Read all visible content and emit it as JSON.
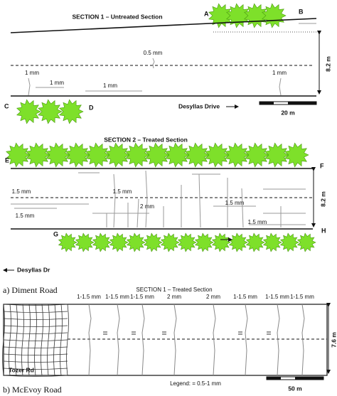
{
  "panel_a": {
    "caption": "a) Diment Road",
    "section1": {
      "title": "SECTION 1 – Untreated Section",
      "points": [
        "A",
        "B",
        "C",
        "D"
      ],
      "crack_labels": [
        "0.5 mm",
        "1 mm",
        "1 mm",
        "1 mm",
        "1 mm"
      ],
      "width": "8.2 m",
      "road": "Desyllas Drive",
      "scale": "20 m"
    },
    "section2": {
      "title": "SECTION 2 – Treated Section",
      "points": [
        "E",
        "F",
        "G",
        "H"
      ],
      "crack_labels": [
        "1.5 mm",
        "1.5 mm",
        "2 mm",
        "1.5 mm",
        "1.5 mm",
        "1.5 mm"
      ],
      "width": "8.2 m",
      "road": "Desyllas Dr"
    }
  },
  "panel_b": {
    "caption": "b) McEvoy Road",
    "title": "SECTION 1 – Treated Section",
    "crack_labels": [
      "1-1.5 mm",
      "1-1.5 mm",
      "1-1.5 mm",
      "2 mm",
      "2 mm",
      "1-1.5 mm",
      "1-1.5 mm",
      "1-1.5 mm"
    ],
    "width": "7.6 m",
    "road": "Tozer Rd",
    "legend": "Legend: = 0.5-1 mm",
    "scale": "50 m"
  }
}
